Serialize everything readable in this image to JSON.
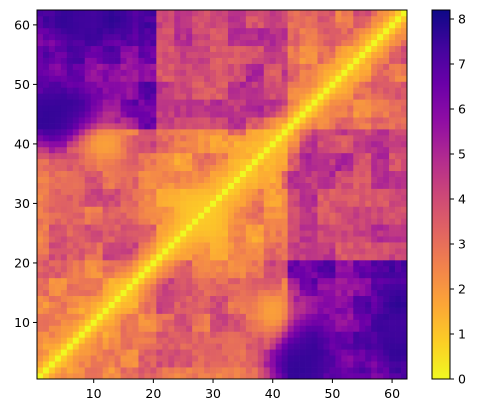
{
  "chart_data": {
    "type": "heatmap",
    "title": "",
    "xlabel": "",
    "ylabel": "",
    "n": 62,
    "x_range": [
      1,
      62
    ],
    "y_range": [
      1,
      62
    ],
    "x_ticks": [
      10,
      20,
      30,
      40,
      50,
      60
    ],
    "y_ticks": [
      10,
      20,
      30,
      40,
      50,
      60
    ],
    "colormap": "plasma_r",
    "color_range": [
      0,
      8.2
    ],
    "colorbar_ticks": [
      0,
      1,
      2,
      3,
      4,
      5,
      6,
      7,
      8
    ],
    "symmetric": true,
    "diagonal_value": 0,
    "coarse_regions": [
      {
        "i": [
          1,
          20
        ],
        "j": [
          1,
          20
        ],
        "value": 2.8
      },
      {
        "i": [
          1,
          20
        ],
        "j": [
          21,
          42
        ],
        "value": 3.3
      },
      {
        "i": [
          1,
          20
        ],
        "j": [
          43,
          62
        ],
        "value": 6.2
      },
      {
        "i": [
          21,
          42
        ],
        "j": [
          21,
          42
        ],
        "value": 2.6
      },
      {
        "i": [
          21,
          42
        ],
        "j": [
          43,
          62
        ],
        "value": 4.2
      },
      {
        "i": [
          43,
          62
        ],
        "j": [
          43,
          62
        ],
        "value": 3.0
      }
    ],
    "hotspots": [
      {
        "i": 61,
        "j": 6,
        "value": 8.0
      },
      {
        "i": 45,
        "j": 6,
        "value": 7.6
      },
      {
        "i": 13,
        "j": 61,
        "value": 7.8
      },
      {
        "i": 5,
        "j": 45,
        "value": 7.5
      },
      {
        "i": 8,
        "j": 61,
        "value": 7.4
      },
      {
        "i": 2,
        "j": 44,
        "value": 7.6
      },
      {
        "i": 40,
        "j": 12,
        "value": 1.8
      },
      {
        "i": 30,
        "j": 26,
        "value": 1.2
      }
    ]
  }
}
